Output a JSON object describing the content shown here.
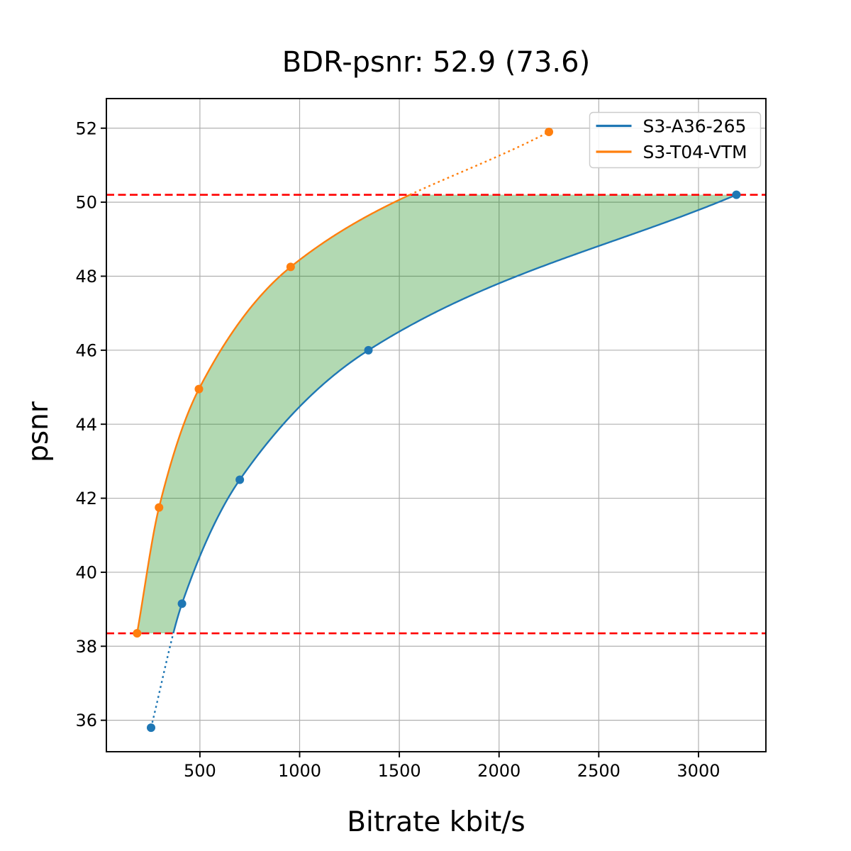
{
  "chart_data": {
    "type": "line",
    "title": "BDR-psnr: 52.9 (73.6)",
    "xlabel": "Bitrate kbit/s",
    "ylabel": "psnr",
    "xlim": [
      31,
      3338
    ],
    "ylim": [
      35.15,
      52.8
    ],
    "xticks": [
      500,
      1000,
      1500,
      2000,
      2500,
      3000
    ],
    "yticks": [
      36,
      38,
      40,
      42,
      44,
      46,
      48,
      50,
      52
    ],
    "grid": true,
    "grid_color": "#b0b0b0",
    "background_color": "#ffffff",
    "text_color": "#000000",
    "legend": {
      "position": "upper right",
      "border_color": "#cccccc",
      "entries": [
        "S3-A36-265",
        "S3-T04-VTM"
      ]
    },
    "series": [
      {
        "name": "S3-A36-265",
        "color": "#1f77b4",
        "x": [
          255,
          410,
          700,
          1345,
          3190
        ],
        "y": [
          35.8,
          39.15,
          42.5,
          46.0,
          50.2
        ]
      },
      {
        "name": "S3-T04-VTM",
        "color": "#ff7f0e",
        "x": [
          185,
          295,
          495,
          955,
          2250
        ],
        "y": [
          38.35,
          41.75,
          44.95,
          48.25,
          51.9
        ]
      }
    ],
    "hlines": [
      {
        "y": 50.2,
        "color": "#ff0000",
        "style": "dashed"
      },
      {
        "y": 38.35,
        "color": "#ff0000",
        "style": "dashed"
      }
    ],
    "shaded_region": {
      "between": "curves",
      "psnr_range": [
        38.35,
        50.2
      ],
      "color": "#008000",
      "opacity": 0.3
    },
    "style_outside_overlap": "dotted"
  }
}
